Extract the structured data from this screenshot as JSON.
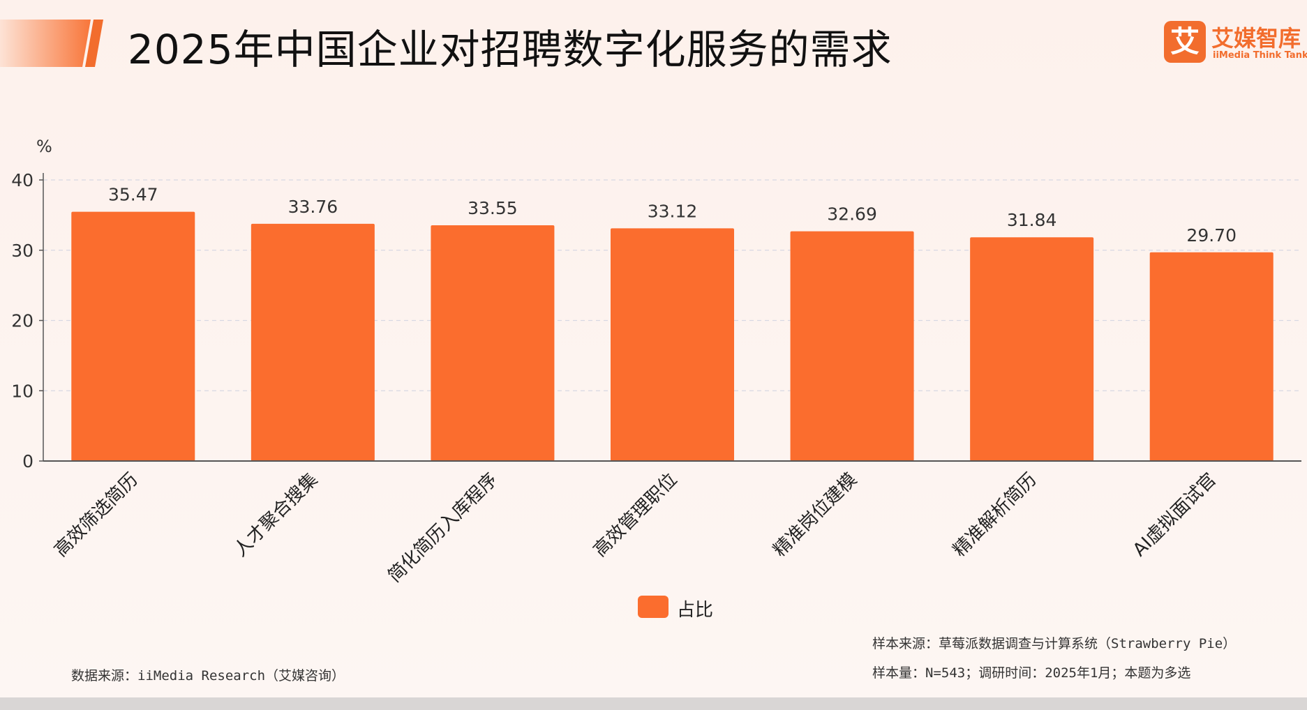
{
  "header": {
    "title": "2025年中国企业对招聘数字化服务的需求"
  },
  "logo": {
    "mark": "艾",
    "name_cn": "艾媒智库",
    "name_en": "iiMedia Think Tank"
  },
  "colors": {
    "bar": "#fb6d2e",
    "accent": "#f26d2d",
    "grid": "#d8d8e2",
    "axis": "#555555"
  },
  "chart_data": {
    "type": "bar",
    "categories": [
      "高效筛选简历",
      "人才聚合搜集",
      "简化简历入库程序",
      "高效管理职位",
      "精准岗位建模",
      "精准解析简历",
      "AI虚拟面试官"
    ],
    "series": [
      {
        "name": "占比",
        "values": [
          35.47,
          33.76,
          33.55,
          33.12,
          32.69,
          31.84,
          29.7
        ]
      }
    ],
    "value_labels": [
      "35.47",
      "33.76",
      "33.55",
      "33.12",
      "32.69",
      "31.84",
      "29.70"
    ],
    "ylabel": "%",
    "ylim": [
      0,
      40
    ],
    "yticks": [
      0,
      10,
      20,
      30,
      40
    ],
    "grid": true,
    "legend": "bottom-center"
  },
  "legend": {
    "label": "占比"
  },
  "footer": {
    "source": "数据来源：iiMedia Research（艾媒咨询）",
    "sample_source": "样本来源：草莓派数据调查与计算系统（Strawberry Pie）",
    "sample_info": "样本量：N=543；调研时间：2025年1月；本题为多选"
  }
}
